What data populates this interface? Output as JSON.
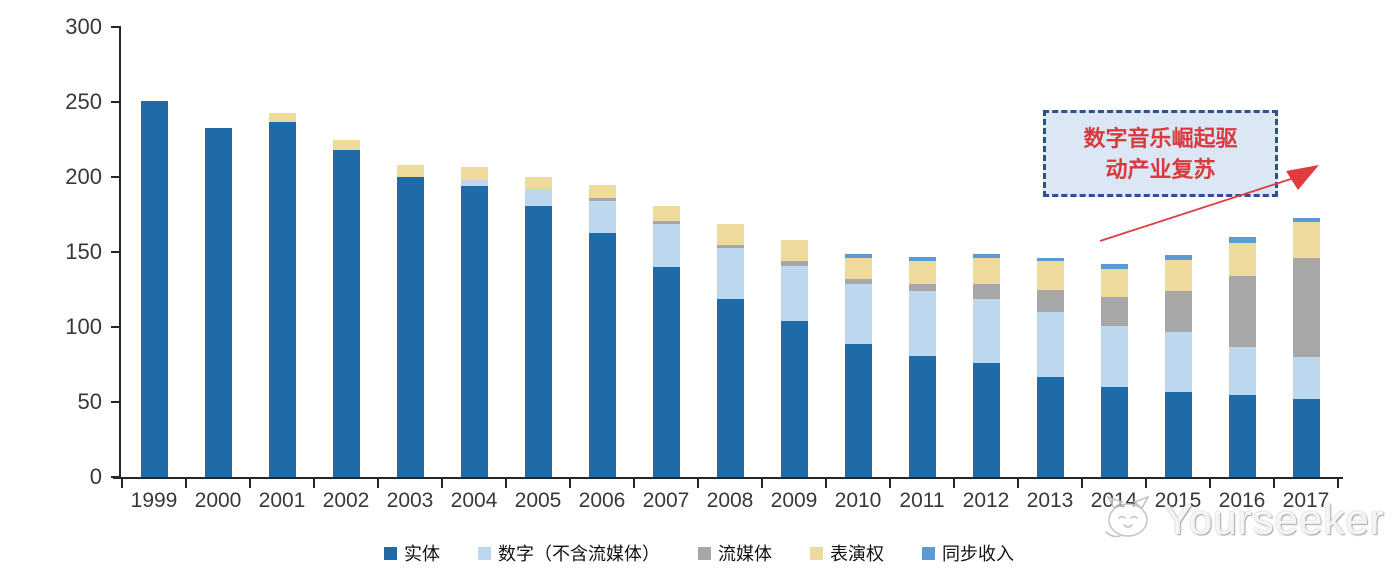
{
  "chart_data": {
    "type": "bar",
    "stacked": true,
    "categories": [
      "1999",
      "2000",
      "2001",
      "2002",
      "2003",
      "2004",
      "2005",
      "2006",
      "2007",
      "2008",
      "2009",
      "2010",
      "2011",
      "2012",
      "2013",
      "2014",
      "2015",
      "2016",
      "2017"
    ],
    "series": [
      {
        "name": "实体",
        "color": "#1f6ba8",
        "values": [
          251,
          233,
          237,
          218,
          200,
          194,
          181,
          163,
          140,
          119,
          104,
          89,
          81,
          76,
          67,
          60,
          57,
          55,
          52
        ]
      },
      {
        "name": "数字（不含流媒体）",
        "color": "#bdd7ee",
        "values": [
          0,
          0,
          0,
          0,
          0,
          4,
          11,
          21,
          29,
          34,
          37,
          40,
          43,
          43,
          43,
          41,
          40,
          32,
          28
        ]
      },
      {
        "name": "流媒体",
        "color": "#a7a7a7",
        "values": [
          0,
          0,
          0,
          0,
          0,
          0,
          0,
          2,
          2,
          2,
          3,
          3,
          5,
          10,
          15,
          19,
          27,
          47,
          66
        ]
      },
      {
        "name": "表演权",
        "color": "#eeda9b",
        "values": [
          0,
          0,
          6,
          7,
          8,
          9,
          8,
          9,
          10,
          14,
          14,
          14,
          15,
          17,
          19,
          19,
          21,
          22,
          24
        ]
      },
      {
        "name": "同步收入",
        "color": "#5b9bd5",
        "values": [
          0,
          0,
          0,
          0,
          0,
          0,
          0,
          0,
          0,
          0,
          0,
          3,
          3,
          3,
          2,
          3,
          3,
          4,
          3
        ]
      }
    ],
    "ylim": [
      0,
      300
    ],
    "y_ticks": [
      0,
      50,
      100,
      150,
      200,
      250,
      300
    ],
    "grid": false,
    "legend_position": "bottom",
    "title": "",
    "xlabel": "",
    "ylabel": ""
  },
  "annotation": {
    "line1": "数字音乐崛起驱",
    "line2": "动产业复苏",
    "text_color": "#d93a3e",
    "box_fill": "#dce7f5",
    "box_border": "#2f4f8e",
    "arrow_color": "#e23b3f"
  },
  "watermark": {
    "text": "Yourseeker",
    "logo": "cat-face-icon"
  }
}
